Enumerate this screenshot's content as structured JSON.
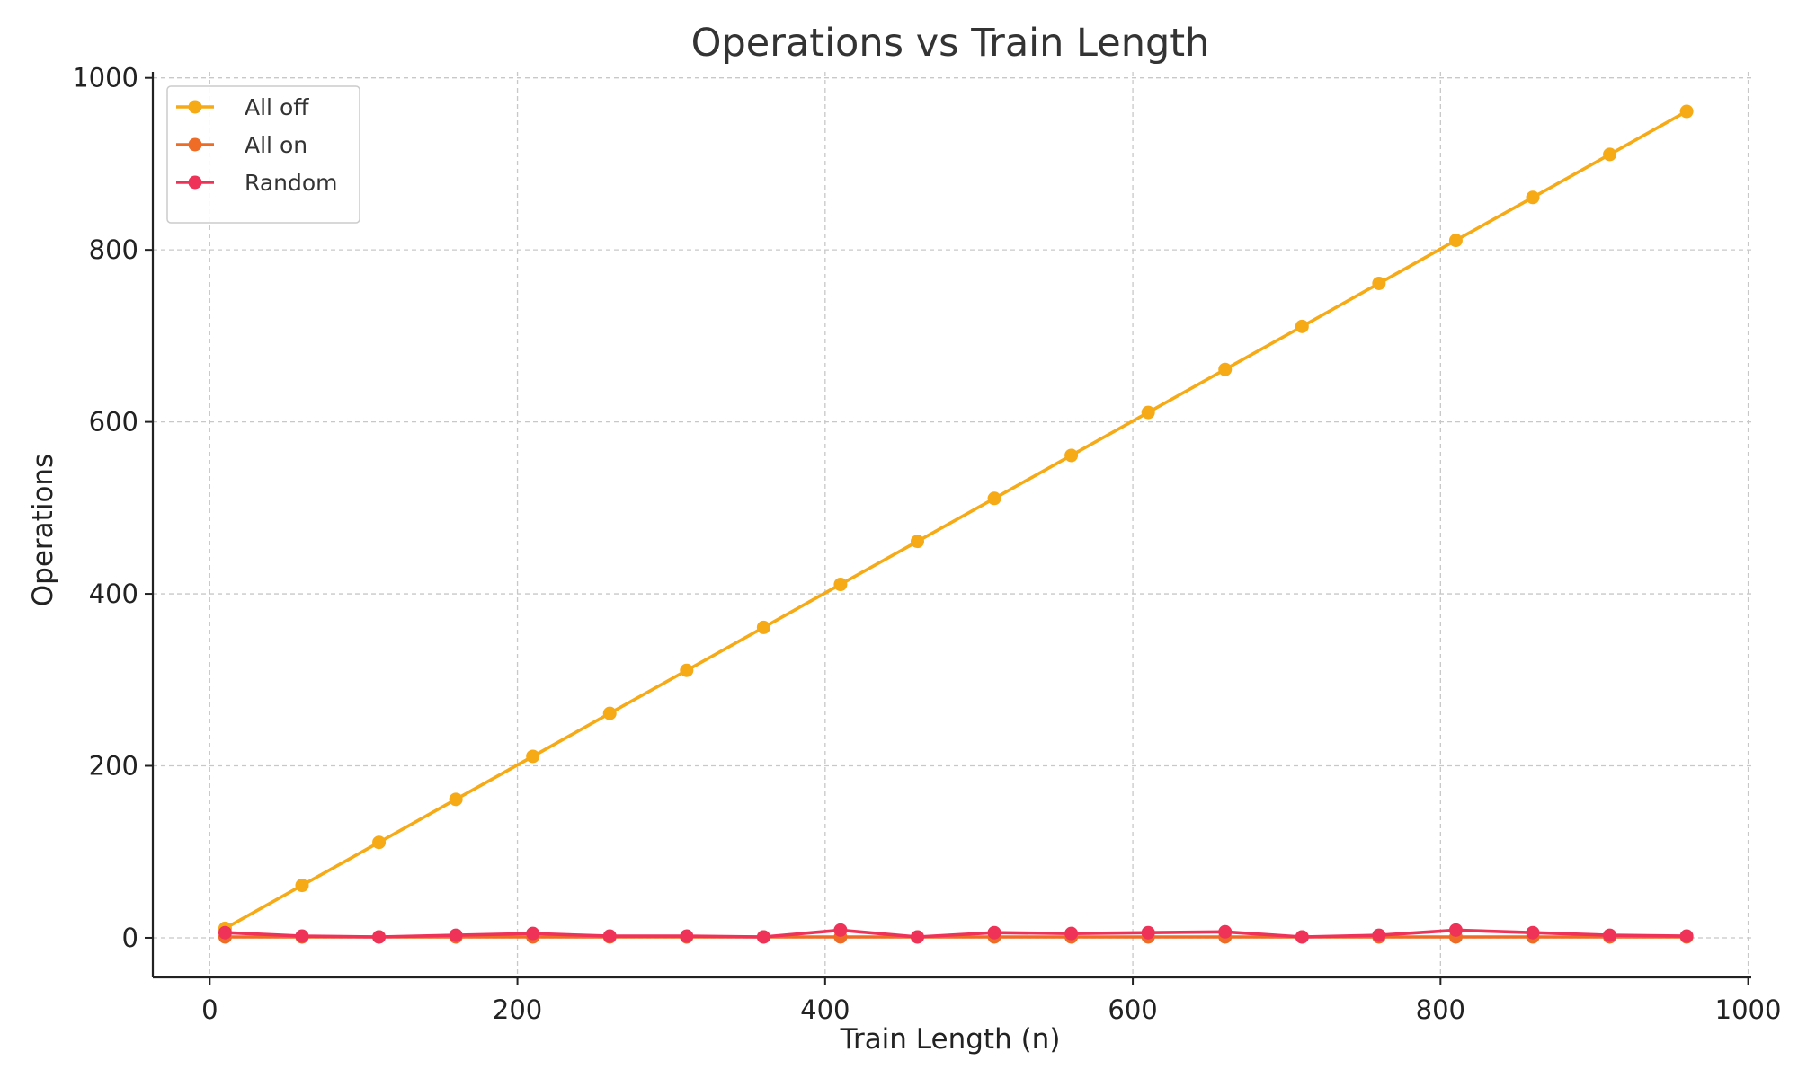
{
  "chart_data": {
    "type": "line",
    "title": "Operations vs Train Length",
    "xlabel": "Train Length (n)",
    "ylabel": "Operations",
    "xlim": [
      -37,
      1002
    ],
    "ylim": [
      -46,
      1007
    ],
    "x_ticks": [
      0,
      200,
      400,
      600,
      800,
      1000
    ],
    "y_ticks": [
      0,
      200,
      400,
      600,
      800,
      1000
    ],
    "grid": true,
    "legend_position": "upper-left",
    "x": [
      10,
      60,
      110,
      160,
      210,
      260,
      310,
      360,
      410,
      460,
      510,
      560,
      610,
      660,
      710,
      760,
      810,
      860,
      910,
      960
    ],
    "series": [
      {
        "name": "All off",
        "color": "#f6aa16",
        "values": [
          11,
          61,
          111,
          161,
          211,
          261,
          311,
          361,
          411,
          461,
          511,
          561,
          611,
          661,
          711,
          761,
          811,
          861,
          911,
          961
        ]
      },
      {
        "name": "All on",
        "color": "#ef6c26",
        "values": [
          1,
          1,
          1,
          1,
          1,
          1,
          1,
          1,
          1,
          1,
          1,
          1,
          1,
          1,
          1,
          1,
          1,
          1,
          1,
          1
        ]
      },
      {
        "name": "Random",
        "color": "#ef3258",
        "values": [
          6,
          2,
          1,
          3,
          5,
          2,
          2,
          1,
          9,
          1,
          6,
          5,
          6,
          7,
          1,
          3,
          9,
          6,
          3,
          2
        ]
      }
    ]
  }
}
